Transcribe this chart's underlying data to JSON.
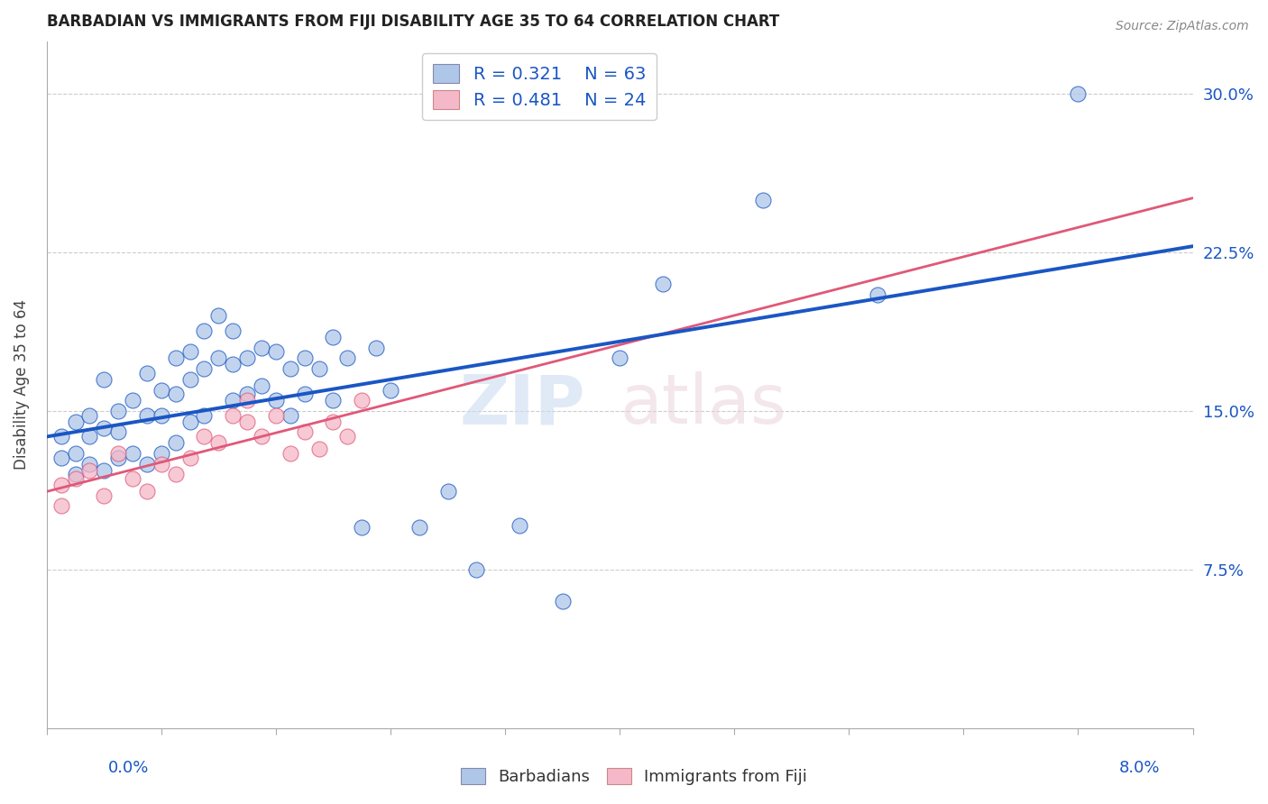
{
  "title": "BARBADIAN VS IMMIGRANTS FROM FIJI DISABILITY AGE 35 TO 64 CORRELATION CHART",
  "source": "Source: ZipAtlas.com",
  "ylabel": "Disability Age 35 to 64",
  "ytick_labels": [
    "7.5%",
    "15.0%",
    "22.5%",
    "30.0%"
  ],
  "ytick_values": [
    0.075,
    0.15,
    0.225,
    0.3
  ],
  "xmin": 0.0,
  "xmax": 0.08,
  "ymin": 0.0,
  "ymax": 0.325,
  "r_blue": 0.321,
  "n_blue": 63,
  "r_pink": 0.481,
  "n_pink": 24,
  "blue_color": "#aec6e8",
  "pink_color": "#f4b8c8",
  "blue_line_color": "#1a56c4",
  "pink_line_color": "#e05878",
  "legend_text_color": "#1a56c4",
  "blue_scatter_x": [
    0.001,
    0.001,
    0.002,
    0.002,
    0.002,
    0.003,
    0.003,
    0.003,
    0.004,
    0.004,
    0.004,
    0.005,
    0.005,
    0.005,
    0.006,
    0.006,
    0.007,
    0.007,
    0.007,
    0.008,
    0.008,
    0.008,
    0.009,
    0.009,
    0.009,
    0.01,
    0.01,
    0.01,
    0.011,
    0.011,
    0.011,
    0.012,
    0.012,
    0.013,
    0.013,
    0.013,
    0.014,
    0.014,
    0.015,
    0.015,
    0.016,
    0.016,
    0.017,
    0.017,
    0.018,
    0.018,
    0.019,
    0.02,
    0.02,
    0.021,
    0.022,
    0.023,
    0.024,
    0.026,
    0.028,
    0.03,
    0.033,
    0.036,
    0.04,
    0.043,
    0.05,
    0.058,
    0.072
  ],
  "blue_scatter_y": [
    0.138,
    0.128,
    0.145,
    0.13,
    0.12,
    0.148,
    0.138,
    0.125,
    0.165,
    0.142,
    0.122,
    0.15,
    0.14,
    0.128,
    0.155,
    0.13,
    0.168,
    0.148,
    0.125,
    0.16,
    0.148,
    0.13,
    0.175,
    0.158,
    0.135,
    0.178,
    0.165,
    0.145,
    0.188,
    0.17,
    0.148,
    0.195,
    0.175,
    0.188,
    0.172,
    0.155,
    0.175,
    0.158,
    0.18,
    0.162,
    0.178,
    0.155,
    0.17,
    0.148,
    0.175,
    0.158,
    0.17,
    0.185,
    0.155,
    0.175,
    0.095,
    0.18,
    0.16,
    0.095,
    0.112,
    0.075,
    0.096,
    0.06,
    0.175,
    0.21,
    0.25,
    0.205,
    0.3
  ],
  "pink_scatter_x": [
    0.001,
    0.001,
    0.002,
    0.003,
    0.004,
    0.005,
    0.006,
    0.007,
    0.008,
    0.009,
    0.01,
    0.011,
    0.012,
    0.013,
    0.014,
    0.014,
    0.015,
    0.016,
    0.017,
    0.018,
    0.019,
    0.02,
    0.021,
    0.022
  ],
  "pink_scatter_y": [
    0.115,
    0.105,
    0.118,
    0.122,
    0.11,
    0.13,
    0.118,
    0.112,
    0.125,
    0.12,
    0.128,
    0.138,
    0.135,
    0.148,
    0.145,
    0.155,
    0.138,
    0.148,
    0.13,
    0.14,
    0.132,
    0.145,
    0.138,
    0.155
  ]
}
